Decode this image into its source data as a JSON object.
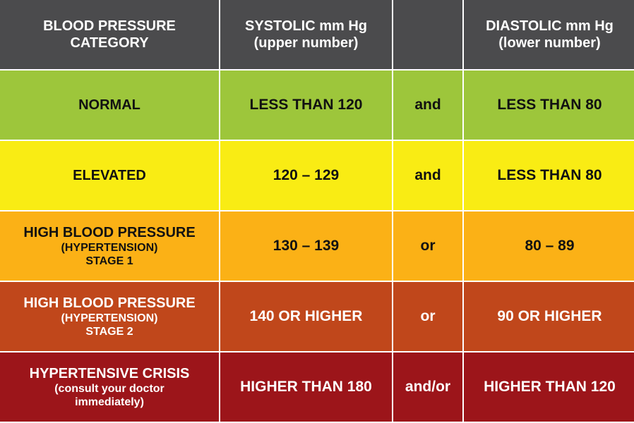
{
  "header": {
    "category": [
      "BLOOD PRESSURE",
      "CATEGORY"
    ],
    "systolic": [
      "SYSTOLIC mm Hg",
      "(upper number)"
    ],
    "diastolic": [
      "DIASTOLIC mm Hg",
      "(lower number)"
    ]
  },
  "rows": [
    {
      "category": [
        "NORMAL"
      ],
      "systolic": "LESS THAN 120",
      "conjunction": "and",
      "diastolic": "LESS THAN 80"
    },
    {
      "category": [
        "ELEVATED"
      ],
      "systolic": "120 – 129",
      "conjunction": "and",
      "diastolic": "LESS THAN 80"
    },
    {
      "category": [
        "HIGH BLOOD PRESSURE",
        "(HYPERTENSION)",
        "STAGE 1"
      ],
      "systolic": "130 – 139",
      "conjunction": "or",
      "diastolic": "80 – 89"
    },
    {
      "category": [
        "HIGH BLOOD PRESSURE",
        "(HYPERTENSION)",
        "STAGE 2"
      ],
      "systolic": "140 OR HIGHER",
      "conjunction": "or",
      "diastolic": "90 OR HIGHER"
    },
    {
      "category": [
        "HYPERTENSIVE CRISIS",
        "(consult your doctor",
        "immediately)"
      ],
      "systolic": "HIGHER THAN 180",
      "conjunction": "and/or",
      "diastolic": "HIGHER THAN 120"
    }
  ]
}
